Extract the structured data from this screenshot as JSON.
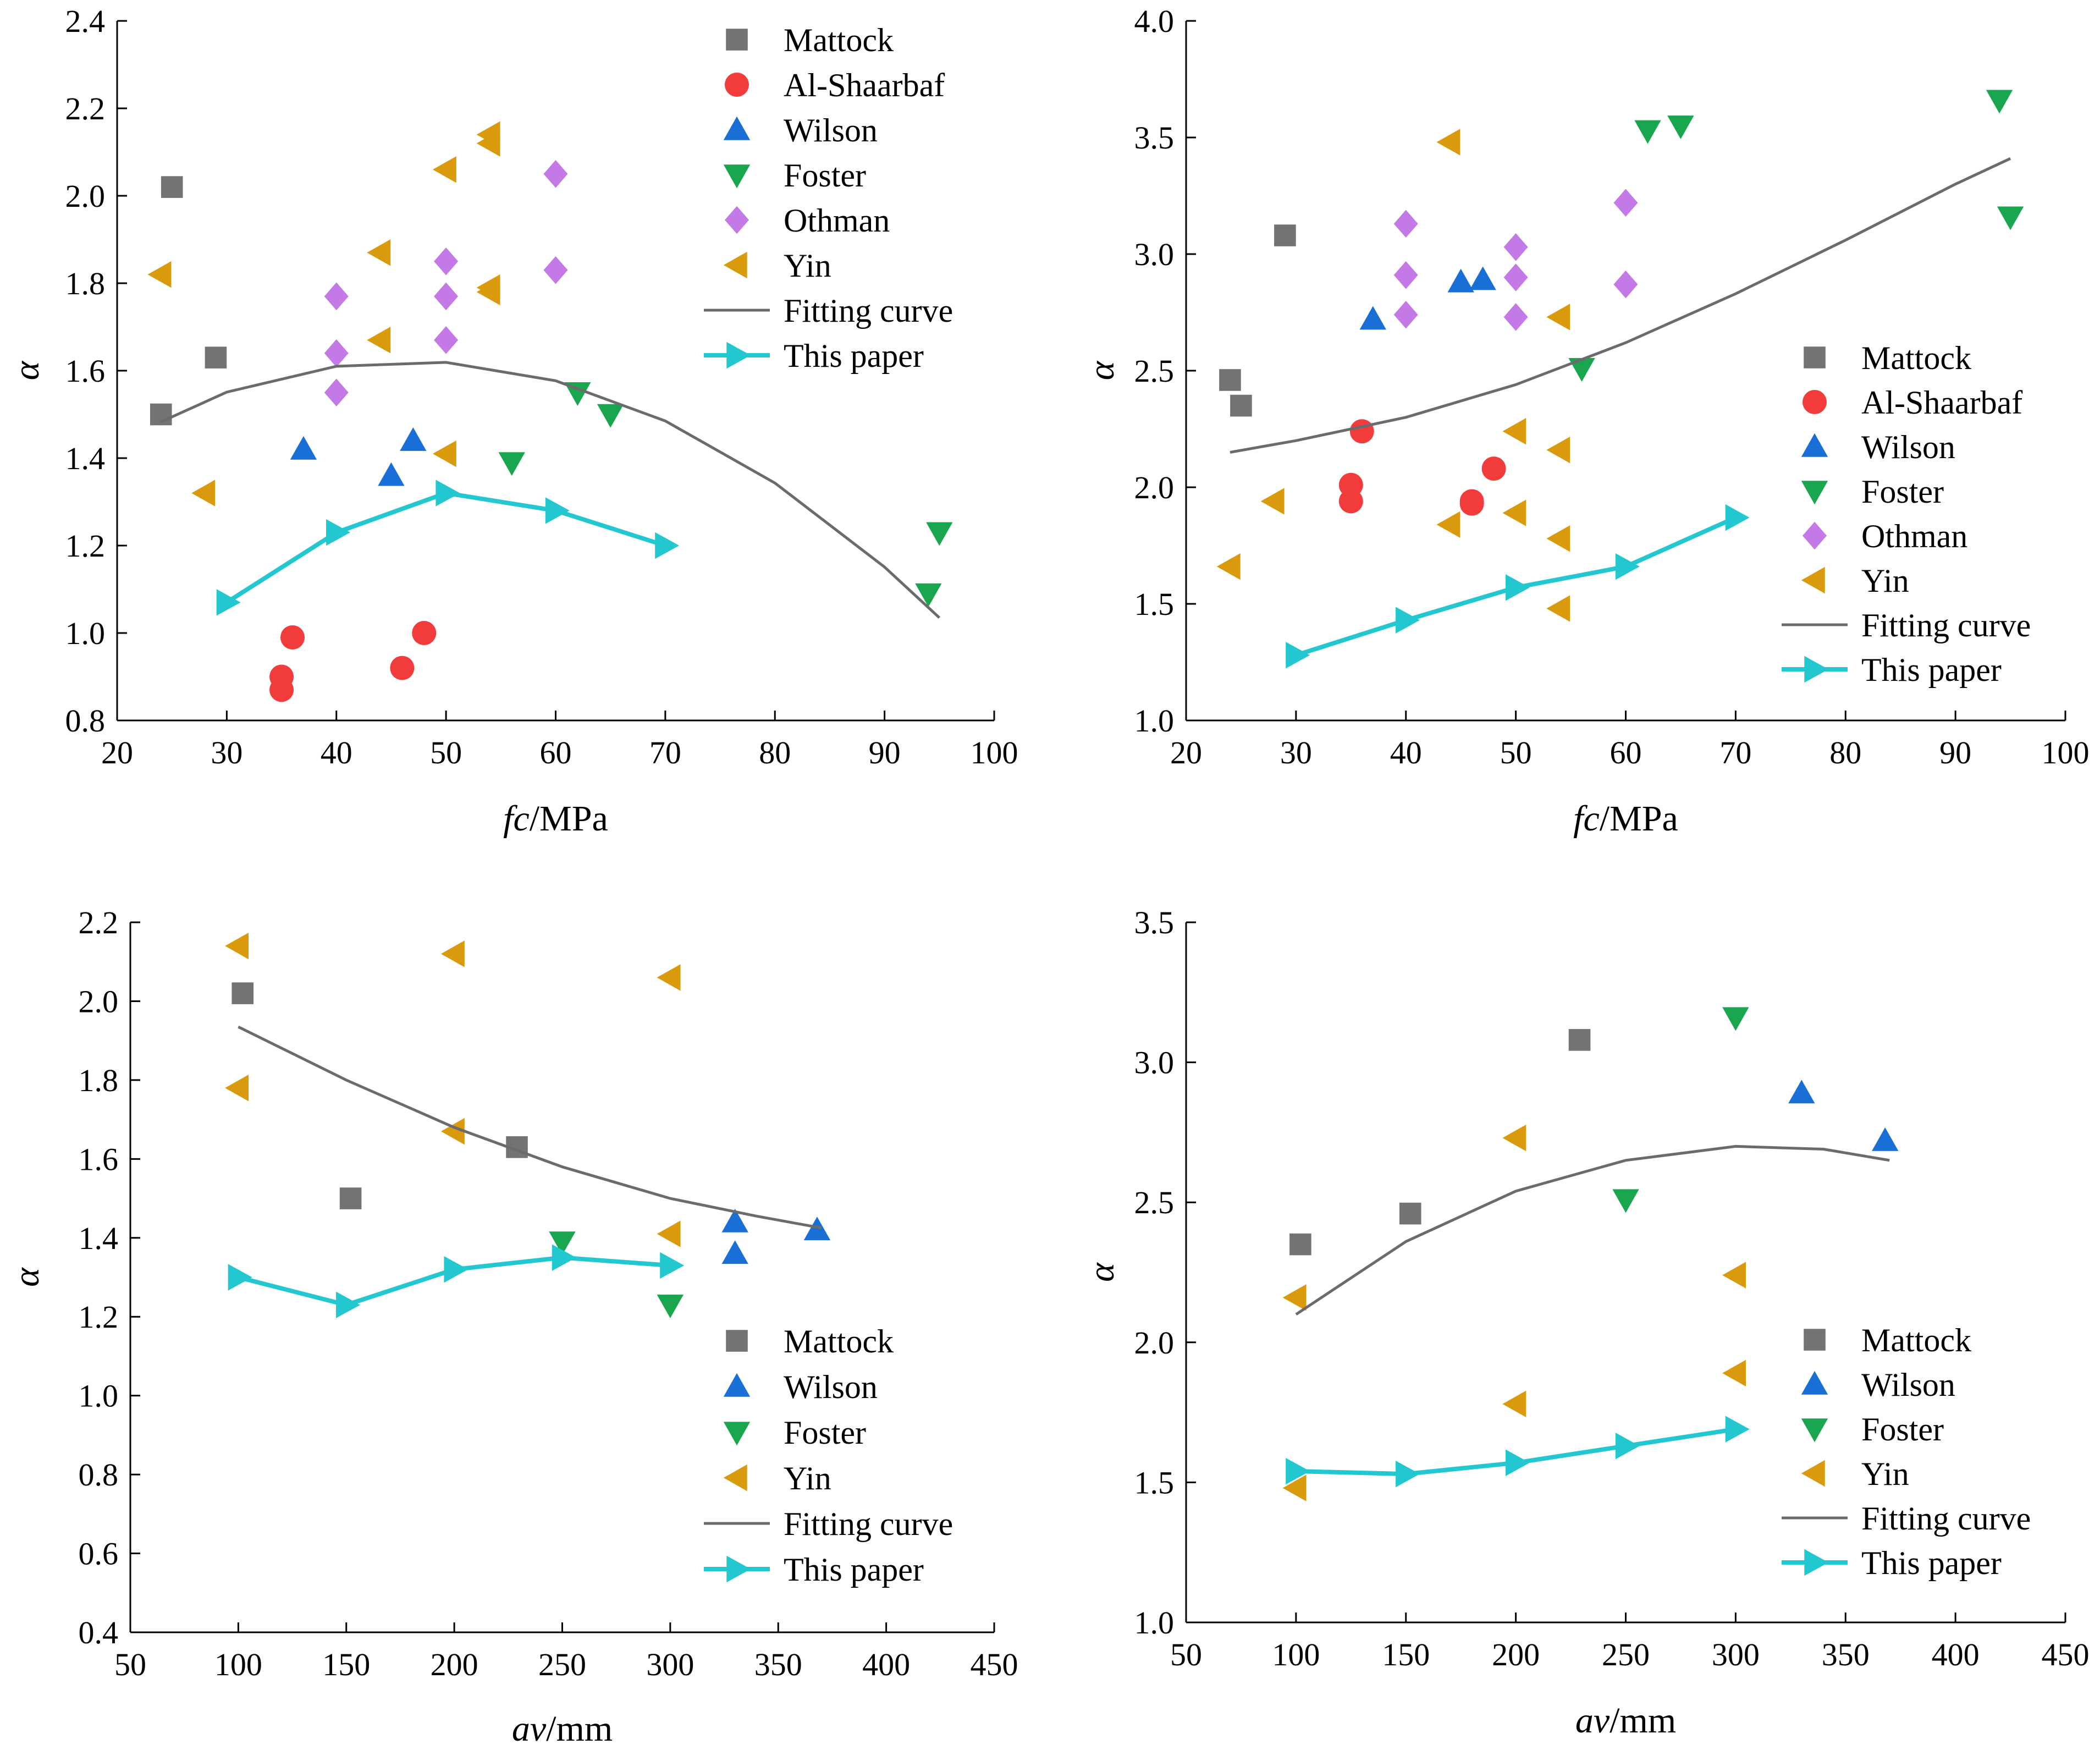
{
  "colors": {
    "Mattock": "#737373",
    "Al-Shaarbaf": "#f23c3c",
    "Wilson": "#1a6fd6",
    "Foster": "#1aa64f",
    "Othman": "#c47ae6",
    "Yin": "#d99a0d",
    "Fitting curve": "#6b6b6b",
    "This paper": "#22c7cf"
  },
  "chart_data": [
    {
      "type": "scatter",
      "xlabel_italic": "fc",
      "xlabel_unit": "/MPa",
      "ylabel": "α",
      "xlim": [
        20,
        100
      ],
      "ylim": [
        0.8,
        2.4
      ],
      "xticks": [
        20,
        30,
        40,
        50,
        60,
        70,
        80,
        90,
        100
      ],
      "yticks": [
        0.8,
        1.0,
        1.2,
        1.4,
        1.6,
        1.8,
        2.0,
        2.2,
        2.4
      ],
      "ytick_decimals": 1,
      "legend_position": "top-right",
      "series": [
        {
          "name": "Mattock",
          "marker": "square",
          "points": [
            [
              25,
              2.02
            ],
            [
              29,
              1.63
            ],
            [
              24,
              1.5
            ]
          ]
        },
        {
          "name": "Al-Shaarbaf",
          "marker": "circle",
          "points": [
            [
              36,
              0.99
            ],
            [
              35,
              0.9
            ],
            [
              35,
              0.87
            ],
            [
              46,
              0.92
            ],
            [
              48,
              1.0
            ]
          ]
        },
        {
          "name": "Wilson",
          "marker": "triangle-up",
          "points": [
            [
              37,
              1.42
            ],
            [
              45,
              1.36
            ],
            [
              47,
              1.44
            ]
          ]
        },
        {
          "name": "Foster",
          "marker": "triangle-down",
          "points": [
            [
              56,
              1.39
            ],
            [
              62,
              1.55
            ],
            [
              65,
              1.5
            ],
            [
              95,
              1.23
            ],
            [
              94,
              1.09
            ]
          ]
        },
        {
          "name": "Othman",
          "marker": "diamond",
          "points": [
            [
              40,
              1.77
            ],
            [
              40,
              1.64
            ],
            [
              40,
              1.55
            ],
            [
              50,
              1.85
            ],
            [
              50,
              1.77
            ],
            [
              50,
              1.67
            ],
            [
              60,
              2.05
            ],
            [
              60,
              1.83
            ]
          ]
        },
        {
          "name": "Yin",
          "marker": "triangle-left",
          "points": [
            [
              24,
              1.82
            ],
            [
              28,
              1.32
            ],
            [
              44,
              1.87
            ],
            [
              44,
              1.67
            ],
            [
              50,
              2.06
            ],
            [
              50,
              1.41
            ],
            [
              54,
              2.14
            ],
            [
              54,
              2.12
            ],
            [
              54,
              1.79
            ],
            [
              54,
              1.78
            ]
          ]
        },
        {
          "name": "Fitting curve",
          "marker": "line",
          "points": [
            [
              24,
              1.483
            ],
            [
              30,
              1.551
            ],
            [
              40,
              1.61
            ],
            [
              50,
              1.619
            ],
            [
              60,
              1.577
            ],
            [
              70,
              1.485
            ],
            [
              80,
              1.343
            ],
            [
              90,
              1.151
            ],
            [
              95,
              1.035
            ]
          ]
        },
        {
          "name": "This paper",
          "marker": "line-triangle-right",
          "points": [
            [
              30,
              1.07
            ],
            [
              40,
              1.23
            ],
            [
              50,
              1.32
            ],
            [
              60,
              1.28
            ],
            [
              70,
              1.2
            ]
          ]
        }
      ]
    },
    {
      "type": "scatter",
      "xlabel_italic": "fc",
      "xlabel_unit": "/MPa",
      "ylabel": "α",
      "xlim": [
        20,
        100
      ],
      "ylim": [
        1.0,
        4.0
      ],
      "xticks": [
        20,
        30,
        40,
        50,
        60,
        70,
        80,
        90,
        100
      ],
      "yticks": [
        1.0,
        1.5,
        2.0,
        2.5,
        3.0,
        3.5,
        4.0
      ],
      "ytick_decimals": 1,
      "legend_position": "right",
      "series": [
        {
          "name": "Mattock",
          "marker": "square",
          "points": [
            [
              24,
              2.46
            ],
            [
              25,
              2.35
            ],
            [
              29,
              3.08
            ]
          ]
        },
        {
          "name": "Al-Shaarbaf",
          "marker": "circle",
          "points": [
            [
              36,
              2.24
            ],
            [
              35,
              2.01
            ],
            [
              35,
              1.94
            ],
            [
              46,
              1.94
            ],
            [
              46,
              1.93
            ],
            [
              48,
              2.08
            ]
          ]
        },
        {
          "name": "Wilson",
          "marker": "triangle-up",
          "points": [
            [
              37,
              2.72
            ],
            [
              45,
              2.88
            ],
            [
              47,
              2.89
            ]
          ]
        },
        {
          "name": "Foster",
          "marker": "triangle-down",
          "points": [
            [
              56,
              2.51
            ],
            [
              62,
              3.53
            ],
            [
              65,
              3.55
            ],
            [
              94,
              3.66
            ],
            [
              95,
              3.16
            ]
          ]
        },
        {
          "name": "Othman",
          "marker": "diamond",
          "points": [
            [
              40,
              3.13
            ],
            [
              40,
              2.91
            ],
            [
              40,
              2.74
            ],
            [
              50,
              3.03
            ],
            [
              50,
              2.9
            ],
            [
              50,
              2.73
            ],
            [
              60,
              3.22
            ],
            [
              60,
              2.87
            ]
          ]
        },
        {
          "name": "Yin",
          "marker": "triangle-left",
          "points": [
            [
              24,
              1.66
            ],
            [
              28,
              1.94
            ],
            [
              44,
              3.48
            ],
            [
              44,
              1.84
            ],
            [
              50,
              2.24
            ],
            [
              50,
              1.89
            ],
            [
              54,
              2.73
            ],
            [
              54,
              2.16
            ],
            [
              54,
              1.78
            ],
            [
              54,
              1.48
            ]
          ]
        },
        {
          "name": "Fitting curve",
          "marker": "line",
          "points": [
            [
              24,
              2.15
            ],
            [
              30,
              2.2
            ],
            [
              40,
              2.3
            ],
            [
              50,
              2.44
            ],
            [
              60,
              2.62
            ],
            [
              70,
              2.83
            ],
            [
              80,
              3.06
            ],
            [
              90,
              3.3
            ],
            [
              95,
              3.41
            ]
          ]
        },
        {
          "name": "This paper",
          "marker": "line-triangle-right",
          "points": [
            [
              30,
              1.28
            ],
            [
              40,
              1.43
            ],
            [
              50,
              1.57
            ],
            [
              60,
              1.66
            ],
            [
              70,
              1.87
            ]
          ]
        }
      ]
    },
    {
      "type": "scatter",
      "xlabel_italic": "av",
      "xlabel_unit": "/mm",
      "ylabel": "α",
      "xlim": [
        50,
        450
      ],
      "ylim": [
        0.4,
        2.2
      ],
      "xticks": [
        50,
        100,
        150,
        200,
        250,
        300,
        350,
        400,
        450
      ],
      "yticks": [
        0.4,
        0.6,
        0.8,
        1.0,
        1.2,
        1.4,
        1.6,
        1.8,
        2.0,
        2.2
      ],
      "ytick_decimals": 1,
      "legend_position": "bottom-right",
      "series": [
        {
          "name": "Mattock",
          "marker": "square",
          "points": [
            [
              102,
              2.02
            ],
            [
              152,
              1.5
            ],
            [
              229,
              1.63
            ]
          ]
        },
        {
          "name": "Wilson",
          "marker": "triangle-up",
          "points": [
            [
              330,
              1.44
            ],
            [
              330,
              1.36
            ],
            [
              368,
              1.42
            ]
          ]
        },
        {
          "name": "Foster",
          "marker": "triangle-down",
          "points": [
            [
              250,
              1.39
            ],
            [
              300,
              1.23
            ]
          ]
        },
        {
          "name": "Yin",
          "marker": "triangle-left",
          "points": [
            [
              100,
              2.14
            ],
            [
              100,
              1.78
            ],
            [
              200,
              2.12
            ],
            [
              200,
              1.67
            ],
            [
              300,
              2.06
            ],
            [
              300,
              1.41
            ]
          ]
        },
        {
          "name": "Fitting curve",
          "marker": "line",
          "points": [
            [
              100,
              1.935
            ],
            [
              150,
              1.8
            ],
            [
              200,
              1.68
            ],
            [
              250,
              1.58
            ],
            [
              300,
              1.5
            ],
            [
              340,
              1.455
            ],
            [
              370,
              1.425
            ]
          ]
        },
        {
          "name": "This paper",
          "marker": "line-triangle-right",
          "points": [
            [
              100,
              1.3
            ],
            [
              150,
              1.23
            ],
            [
              200,
              1.32
            ],
            [
              250,
              1.35
            ],
            [
              300,
              1.33
            ]
          ]
        }
      ]
    },
    {
      "type": "scatter",
      "xlabel_italic": "av",
      "xlabel_unit": "/mm",
      "ylabel": "α",
      "xlim": [
        50,
        450
      ],
      "ylim": [
        1.0,
        3.5
      ],
      "xticks": [
        50,
        100,
        150,
        200,
        250,
        300,
        350,
        400,
        450
      ],
      "yticks": [
        1.0,
        1.5,
        2.0,
        2.5,
        3.0,
        3.5
      ],
      "ytick_decimals": 1,
      "legend_position": "bottom-right",
      "series": [
        {
          "name": "Mattock",
          "marker": "square",
          "points": [
            [
              102,
              2.35
            ],
            [
              152,
              2.46
            ],
            [
              229,
              3.08
            ]
          ]
        },
        {
          "name": "Wilson",
          "marker": "triangle-up",
          "points": [
            [
              330,
              2.89
            ],
            [
              368,
              2.72
            ]
          ]
        },
        {
          "name": "Foster",
          "marker": "triangle-down",
          "points": [
            [
              250,
              2.51
            ],
            [
              300,
              3.16
            ]
          ]
        },
        {
          "name": "Yin",
          "marker": "triangle-left",
          "points": [
            [
              100,
              2.16
            ],
            [
              100,
              1.48
            ],
            [
              200,
              2.73
            ],
            [
              200,
              1.78
            ],
            [
              300,
              2.24
            ],
            [
              300,
              1.89
            ]
          ]
        },
        {
          "name": "Fitting curve",
          "marker": "line",
          "points": [
            [
              100,
              2.1
            ],
            [
              150,
              2.36
            ],
            [
              200,
              2.54
            ],
            [
              250,
              2.65
            ],
            [
              300,
              2.7
            ],
            [
              340,
              2.69
            ],
            [
              370,
              2.65
            ]
          ]
        },
        {
          "name": "This paper",
          "marker": "line-triangle-right",
          "points": [
            [
              100,
              1.54
            ],
            [
              150,
              1.53
            ],
            [
              200,
              1.57
            ],
            [
              250,
              1.63
            ],
            [
              300,
              1.69
            ]
          ]
        }
      ]
    }
  ]
}
